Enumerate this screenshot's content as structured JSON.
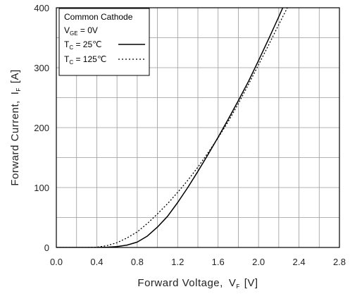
{
  "chart_data": {
    "type": "line",
    "xlabel": "Forward Voltage,",
    "xlabel_symbol": "V",
    "xlabel_sub": "F",
    "xlabel_unit": "[V]",
    "ylabel": "Forward Current,",
    "ylabel_symbol": "I",
    "ylabel_sub": "F",
    "ylabel_unit": "[A]",
    "xlim": [
      0.0,
      2.8
    ],
    "ylim": [
      0,
      400
    ],
    "x_ticks": [
      "0.0",
      "0.4",
      "0.8",
      "1.2",
      "1.6",
      "2.0",
      "2.4",
      "2.8"
    ],
    "y_ticks": [
      "0",
      "100",
      "200",
      "300",
      "400"
    ],
    "grid": true,
    "legend_position": "top-left",
    "legend": {
      "title": "Common Cathode",
      "condition_symbol": "V",
      "condition_sub": "GE",
      "condition_value": " = 0V",
      "entries": [
        {
          "symbol": "T",
          "sub": "C",
          "text": " =   25℃",
          "style": "solid"
        },
        {
          "symbol": "T",
          "sub": "C",
          "text": " = 125℃",
          "style": "dotted"
        }
      ]
    },
    "series": [
      {
        "style": "solid",
        "x": [
          0.4,
          0.5,
          0.6,
          0.7,
          0.8,
          0.9,
          1.0,
          1.1,
          1.2,
          1.3,
          1.4,
          1.5,
          1.6,
          1.7,
          1.8,
          1.9,
          2.0,
          2.1,
          2.2,
          2.25
        ],
        "y": [
          0,
          0.5,
          1.5,
          4,
          9,
          19,
          34,
          52,
          75,
          100,
          127,
          155,
          184,
          214,
          245,
          277,
          312,
          348,
          385,
          404
        ]
      },
      {
        "style": "dotted",
        "x": [
          0.3,
          0.4,
          0.5,
          0.6,
          0.7,
          0.8,
          0.9,
          1.0,
          1.1,
          1.2,
          1.3,
          1.4,
          1.5,
          1.6,
          1.7,
          1.8,
          1.9,
          2.0,
          2.1,
          2.2,
          2.3
        ],
        "y": [
          0,
          0.5,
          3,
          8,
          16,
          26,
          40,
          56,
          73,
          92,
          112,
          134,
          158,
          183,
          210,
          240,
          272,
          305,
          338,
          372,
          405
        ]
      }
    ]
  }
}
